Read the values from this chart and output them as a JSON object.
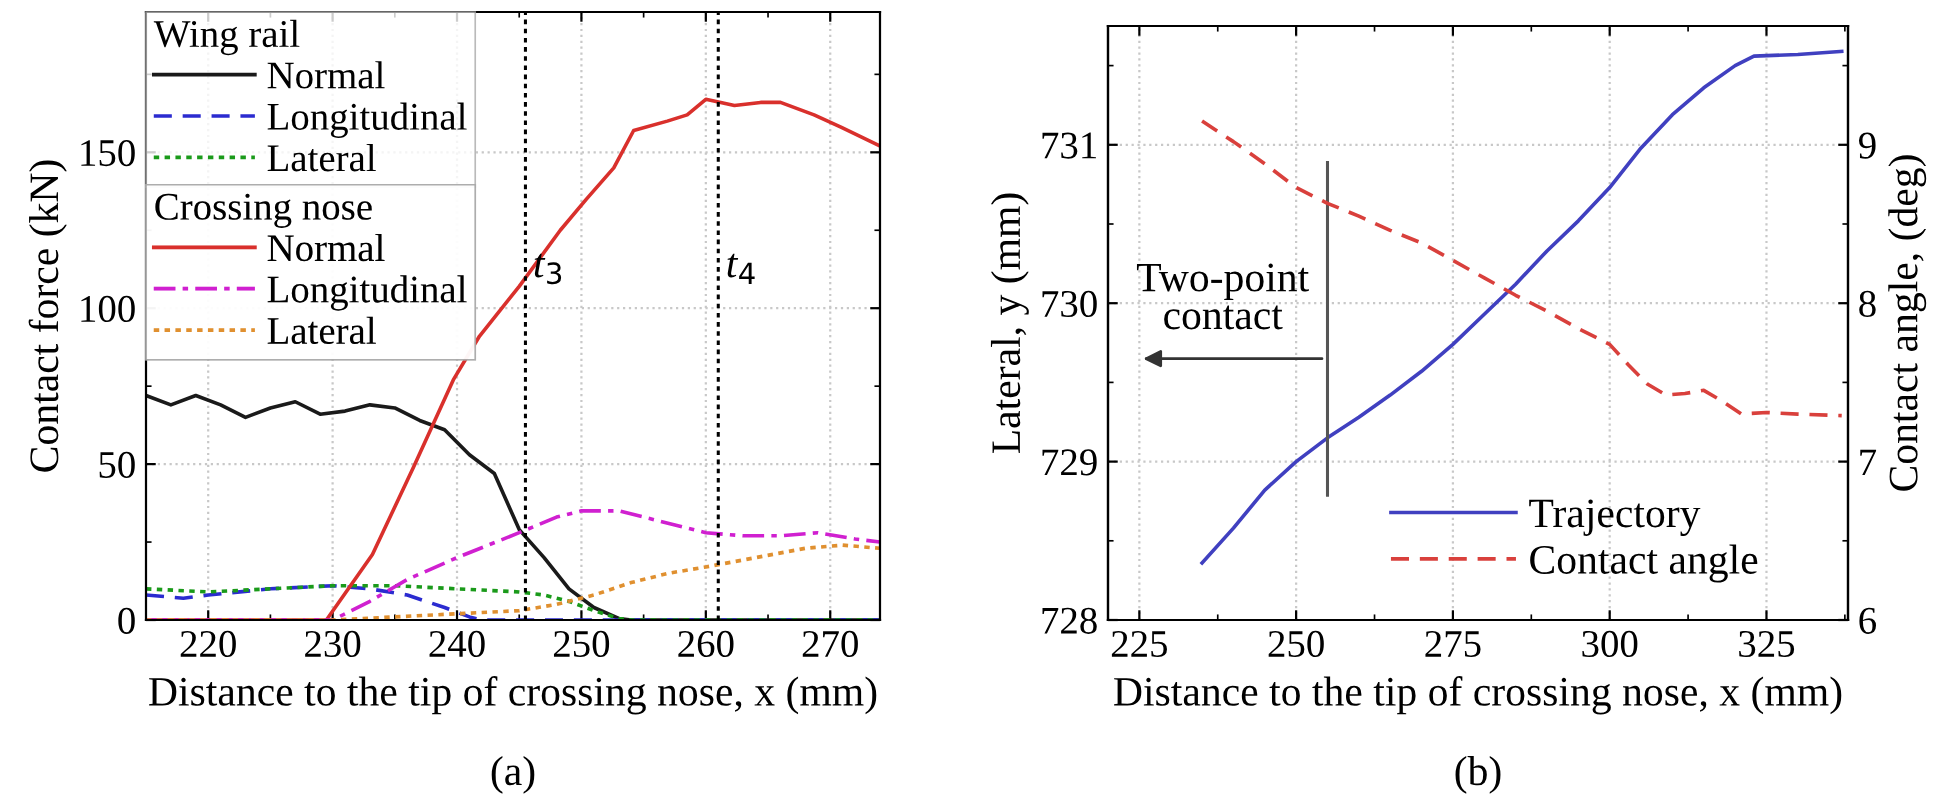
{
  "chart_data": [
    {
      "type": "line",
      "xlabel": "Distance to the tip of crossing nose, x (mm)",
      "ylabel": "Contact force (kN)",
      "legend_title": [
        "Wing rail",
        "Crossing nose"
      ],
      "legend": "top left",
      "grid": true,
      "xlim": [
        215,
        274
      ],
      "xticks": [
        220,
        230,
        240,
        250,
        260,
        270
      ],
      "ylim": [
        0,
        195
      ],
      "yticks": [
        0,
        50,
        100,
        150
      ],
      "annotations": [
        "(a)"
      ],
      "ref_lines": [
        {
          "axis": "x",
          "value": 245.5,
          "label": "t$_{3}$",
          "color": "#000000",
          "line_style": "dotted"
        },
        {
          "axis": "x",
          "value": 261,
          "label": "t$_{4}$",
          "color": "#000000",
          "line_style": "dotted"
        }
      ],
      "series": [
        {
          "name": "Normal",
          "color": "#1a1a1a",
          "line_style": "solid",
          "x": [
            215,
            217,
            219,
            221,
            223,
            225,
            227,
            229,
            231,
            233,
            235,
            237,
            239,
            241,
            243,
            245,
            247,
            249,
            251,
            253,
            254,
            274
          ],
          "values": [
            72,
            69,
            72,
            69,
            65,
            68,
            70,
            66,
            67,
            69,
            68,
            64,
            61,
            53,
            47,
            29,
            20,
            10,
            4,
            0.5,
            0,
            0
          ]
        },
        {
          "name": "Longitudinal",
          "color": "#2b2bd0",
          "line_style": "dashed",
          "x": [
            215,
            218,
            220,
            225,
            230,
            233,
            236,
            239,
            241,
            242,
            274
          ],
          "values": [
            8,
            7,
            8,
            10,
            11,
            10,
            8,
            4,
            1,
            0,
            0
          ]
        },
        {
          "name": "Lateral",
          "color": "#1a9a1a",
          "line_style": "dotted",
          "x": [
            215,
            220,
            225,
            230,
            235,
            240,
            245,
            247,
            249,
            251,
            253,
            254,
            274
          ],
          "values": [
            10,
            9,
            10,
            11,
            11,
            10,
            9,
            8,
            6,
            3,
            0.5,
            0,
            0
          ]
        },
        {
          "name": "Normal",
          "color": "#d9302c",
          "line_style": "solid",
          "x": [
            215,
            229.5,
            233.2,
            236.5,
            239.7,
            241.8,
            245,
            248.3,
            250.4,
            252.6,
            254.2,
            256.9,
            258.5,
            260,
            262.3,
            264.4,
            266,
            268.7,
            270.9,
            274
          ],
          "values": [
            0,
            0,
            21,
            49,
            77,
            91,
            107,
            125,
            135,
            145,
            157,
            160,
            162,
            167,
            165,
            166,
            166,
            162,
            158,
            152
          ]
        },
        {
          "name": "Longitudinal",
          "color": "#d020d0",
          "line_style": "dashdot",
          "x": [
            215,
            230,
            233,
            236,
            240,
            245,
            248,
            250,
            253,
            256,
            260,
            263,
            266,
            269,
            272,
            274
          ],
          "values": [
            0,
            0,
            6,
            13,
            20,
            28,
            33,
            35,
            35,
            32,
            28,
            27,
            27,
            28,
            26,
            25
          ]
        },
        {
          "name": "Lateral",
          "color": "#e09030",
          "line_style": "dotted",
          "x": [
            215,
            230,
            235,
            240,
            245,
            248,
            251,
            254,
            257,
            260,
            264,
            268,
            271,
            274
          ],
          "values": [
            0,
            0,
            1,
            2,
            3,
            5,
            8,
            12,
            15,
            17,
            20,
            23,
            24,
            23
          ]
        }
      ]
    },
    {
      "type": "line",
      "xlabel": "Distance to the tip of crossing nose, x (mm)",
      "ylabel": "Lateral, y (mm)",
      "y2label": "Contact angle, (deg)",
      "legend": "bottom right",
      "grid": true,
      "xlim": [
        220,
        338
      ],
      "xticks": [
        225,
        250,
        275,
        300,
        325
      ],
      "ylim": [
        728,
        731.75
      ],
      "yticks": [
        728,
        729,
        730,
        731
      ],
      "y2lim": [
        6,
        9.75
      ],
      "y2ticks": [
        6,
        7,
        8,
        9
      ],
      "annotations": [
        "Two-point contact",
        "(b)"
      ],
      "ref_lines": [
        {
          "axis": "x",
          "value": 255,
          "color": "#555555",
          "line_style": "solid"
        }
      ],
      "series": [
        {
          "name": "Trajectory",
          "color": "#4040c0",
          "line_style": "solid",
          "x": [
            235,
            240,
            245,
            250,
            255,
            260,
            265,
            270,
            275,
            280,
            285,
            290,
            295,
            300,
            305,
            310,
            315,
            320,
            323,
            330,
            337
          ],
          "values": [
            728.36,
            728.58,
            728.82,
            729.0,
            729.15,
            729.28,
            729.42,
            729.57,
            729.74,
            729.93,
            730.12,
            730.33,
            730.52,
            730.73,
            730.98,
            731.19,
            731.36,
            731.5,
            731.56,
            731.57,
            731.59
          ]
        },
        {
          "name": "Contact angle",
          "color": "#d9403c",
          "line_style": "dashed",
          "axis": "y2",
          "x": [
            235,
            240,
            245,
            250,
            255,
            260,
            265,
            270,
            275,
            280,
            285,
            290,
            295,
            300,
            303,
            306,
            309,
            312,
            315,
            318,
            321,
            325,
            330,
            337
          ],
          "values": [
            9.15,
            9.02,
            8.88,
            8.73,
            8.63,
            8.55,
            8.46,
            8.38,
            8.27,
            8.16,
            8.05,
            7.95,
            7.84,
            7.74,
            7.61,
            7.49,
            7.42,
            7.43,
            7.45,
            7.38,
            7.3,
            7.31,
            7.3,
            7.29
          ]
        }
      ]
    }
  ]
}
